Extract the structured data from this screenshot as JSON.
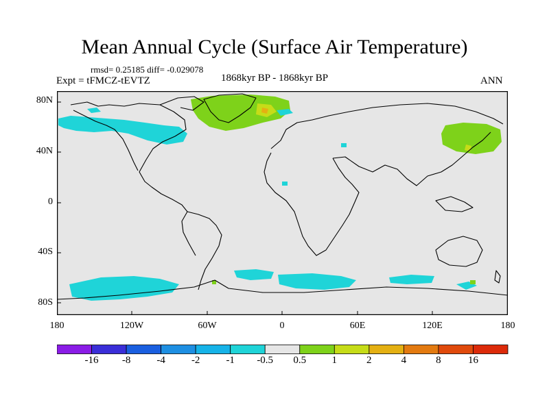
{
  "title": "Mean Annual Cycle (Surface Air Temperature)",
  "stats": "rmsd= 0.25185 diff= -0.029078",
  "experiment": "Expt = tFMCZ-tEVTZ",
  "period": "1868kyr BP - 1868kyr BP",
  "season": "ANN",
  "lat_ticks": [
    "80N",
    "40N",
    "0",
    "40S",
    "80S"
  ],
  "lon_ticks": [
    "180",
    "120W",
    "60W",
    "0",
    "60E",
    "120E",
    "180"
  ],
  "colorbar": {
    "labels": [
      "-16",
      "-8",
      "-4",
      "-2",
      "-1",
      "-0.5",
      "0.5",
      "1",
      "2",
      "4",
      "8",
      "16"
    ],
    "colors": [
      "#8a1ce6",
      "#3a2ed8",
      "#1a5fe0",
      "#1e8fe2",
      "#16b3e8",
      "#1fd4d8",
      "#e6e6e6",
      "#7ed21a",
      "#c6dc18",
      "#e4b012",
      "#e37a10",
      "#e04a0c",
      "#dc2a0a"
    ]
  }
}
